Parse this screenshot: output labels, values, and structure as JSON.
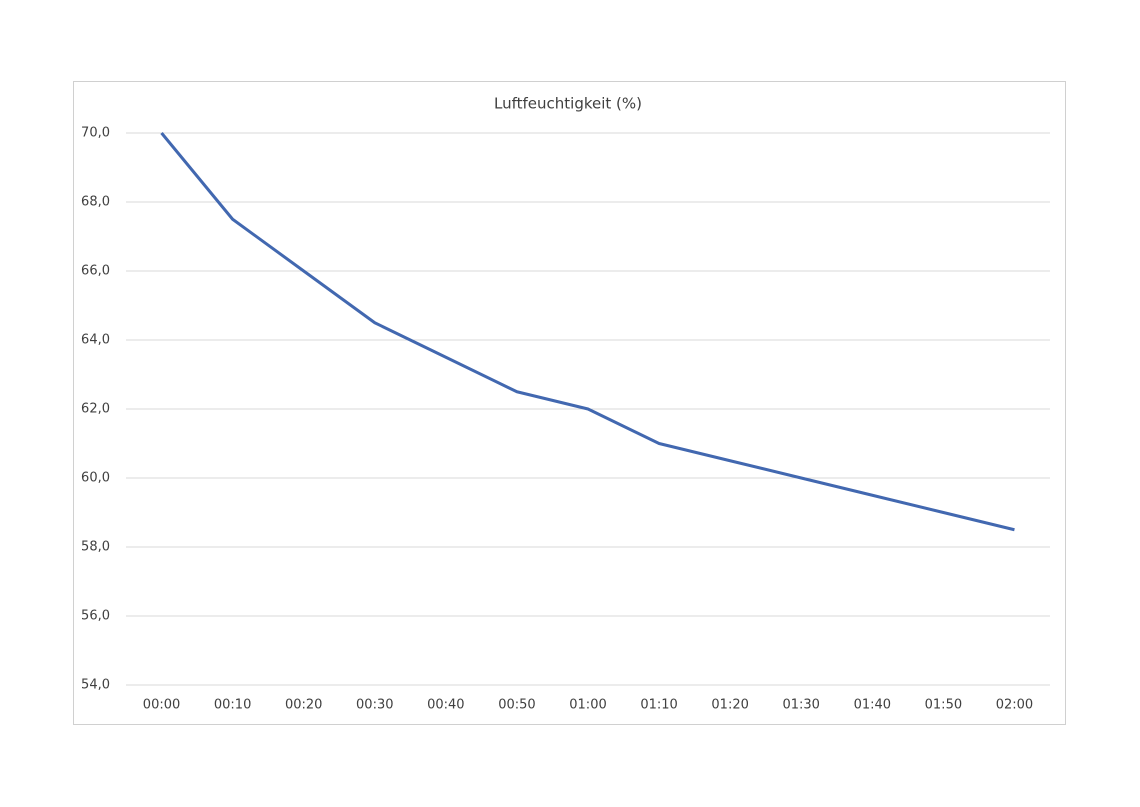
{
  "chart_data": {
    "type": "line",
    "title": "Luftfeuchtigkeit (%)",
    "categories": [
      "00:00",
      "00:10",
      "00:20",
      "00:30",
      "00:40",
      "00:50",
      "01:00",
      "01:10",
      "01:20",
      "01:30",
      "01:40",
      "01:50",
      "02:00"
    ],
    "values": [
      70.0,
      67.5,
      66.0,
      64.5,
      63.5,
      62.5,
      62.0,
      61.0,
      60.5,
      60.0,
      59.5,
      59.0,
      58.5
    ],
    "color": "#4268b0",
    "ylim": [
      54,
      70
    ],
    "yticks": [
      {
        "value": 54,
        "label": "54,0"
      },
      {
        "value": 56,
        "label": "56,0"
      },
      {
        "value": 58,
        "label": "58,0"
      },
      {
        "value": 60,
        "label": "60,0"
      },
      {
        "value": 62,
        "label": "62,0"
      },
      {
        "value": 64,
        "label": "64,0"
      },
      {
        "value": 66,
        "label": "66,0"
      },
      {
        "value": 68,
        "label": "68,0"
      },
      {
        "value": 70,
        "label": "70,0"
      }
    ],
    "grid": true
  }
}
